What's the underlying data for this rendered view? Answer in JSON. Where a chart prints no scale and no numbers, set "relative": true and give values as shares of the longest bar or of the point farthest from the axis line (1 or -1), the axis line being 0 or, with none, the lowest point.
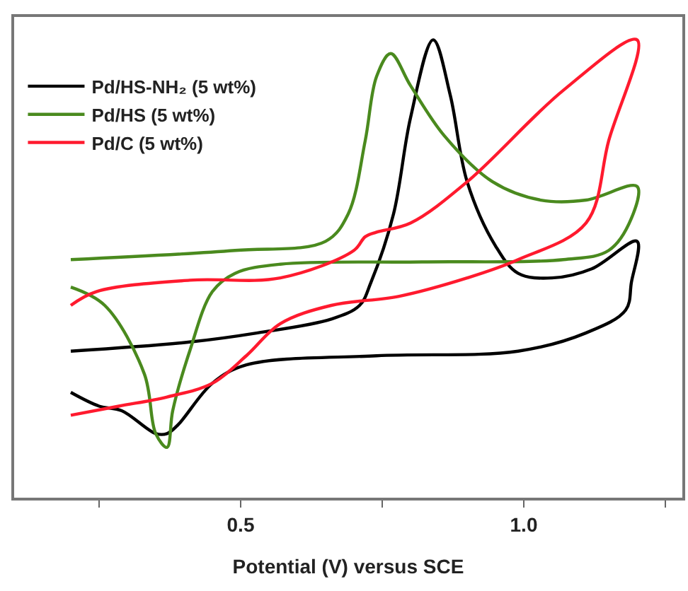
{
  "chart_data": {
    "type": "line",
    "xlabel": "Potential (V) versus SCE",
    "relative": true,
    "xlim": [
      0.1,
      1.28
    ],
    "xticks": [
      {
        "value": 0.25,
        "label": null
      },
      {
        "value": 0.5,
        "label": "0.5"
      },
      {
        "value": 0.75,
        "label": null
      },
      {
        "value": 1.0,
        "label": "1.0"
      },
      {
        "value": 1.25,
        "label": null
      }
    ],
    "tick_labels": "x",
    "legend": "top left",
    "line_style": "solid",
    "series": [
      {
        "name": "Pd/HS-NH₂ (5 wt%)",
        "color": "#000000",
        "x": [
          0.2,
          0.41,
          0.53,
          0.66,
          0.71,
          0.73,
          0.77,
          0.8,
          0.84,
          0.87,
          0.9,
          0.95,
          0.99,
          1.05,
          1.12,
          1.2,
          1.19,
          1.18,
          1.11,
          0.99,
          0.74,
          0.51,
          0.45,
          0.39,
          0.37,
          0.35,
          0.29,
          0.25,
          0.2
        ],
        "values": [
          0.32,
          0.34,
          0.36,
          0.39,
          0.42,
          0.47,
          0.62,
          0.83,
          1.0,
          0.88,
          0.69,
          0.55,
          0.49,
          0.48,
          0.5,
          0.56,
          0.47,
          0.41,
          0.36,
          0.32,
          0.31,
          0.29,
          0.25,
          0.16,
          0.14,
          0.14,
          0.19,
          0.2,
          0.23
        ]
      },
      {
        "name": "Pd/HS (5 wt%)",
        "color": "#4a8a1e",
        "x": [
          0.2,
          0.49,
          0.65,
          0.69,
          0.72,
          0.74,
          0.765,
          0.8,
          0.86,
          0.945,
          1.03,
          1.11,
          1.2,
          1.19,
          1.15,
          1.07,
          0.82,
          0.57,
          0.49,
          0.45,
          0.41,
          0.38,
          0.37,
          0.35,
          0.33,
          0.26,
          0.2
        ],
        "values": [
          0.52,
          0.54,
          0.56,
          0.62,
          0.78,
          0.92,
          0.97,
          0.9,
          0.79,
          0.69,
          0.65,
          0.65,
          0.68,
          0.61,
          0.54,
          0.52,
          0.515,
          0.51,
          0.49,
          0.45,
          0.32,
          0.19,
          0.11,
          0.14,
          0.27,
          0.42,
          0.46
        ]
      },
      {
        "name": "Pd/C (5 wt%)",
        "color": "#ff1a2e",
        "x": [
          0.2,
          0.285,
          0.37,
          0.45,
          0.51,
          0.57,
          0.66,
          0.78,
          0.9,
          0.99,
          1.11,
          1.15,
          1.2,
          1.07,
          0.9,
          0.8,
          0.74,
          0.72,
          0.7,
          0.57,
          0.41,
          0.245,
          0.2
        ],
        "values": [
          0.18,
          0.2,
          0.22,
          0.25,
          0.31,
          0.38,
          0.42,
          0.44,
          0.48,
          0.52,
          0.6,
          0.78,
          1.0,
          0.89,
          0.69,
          0.6,
          0.58,
          0.57,
          0.54,
          0.48,
          0.475,
          0.45,
          0.42
        ]
      }
    ]
  }
}
